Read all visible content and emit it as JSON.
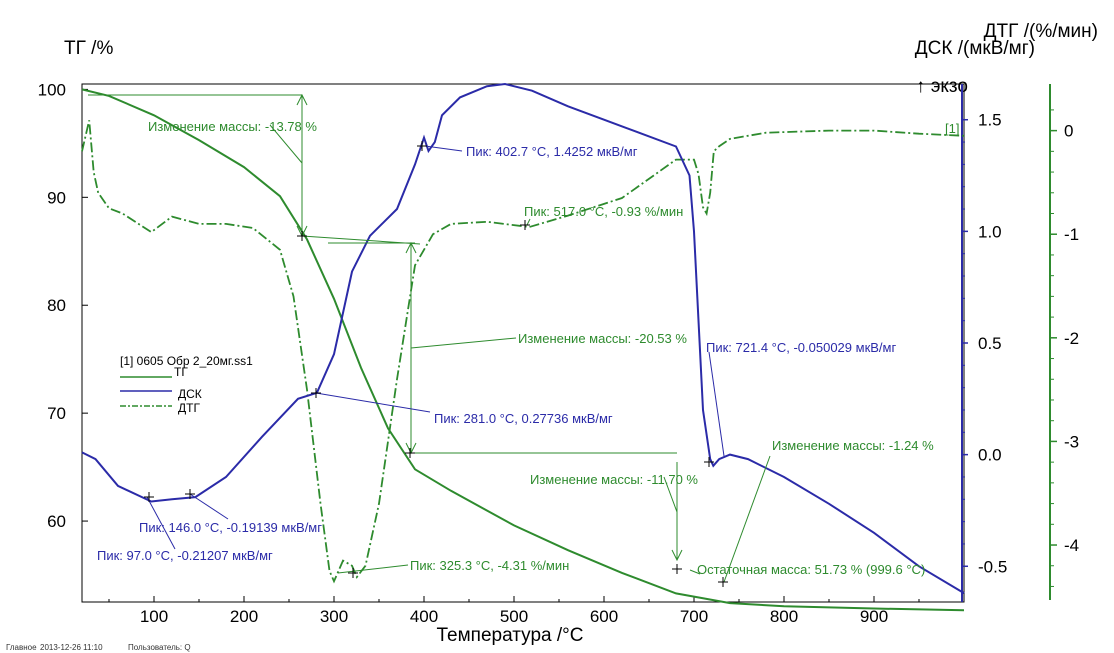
{
  "chart_data": {
    "type": "line",
    "xlabel": "Температура /°C",
    "x_ticks": [
      100,
      200,
      300,
      400,
      500,
      600,
      700,
      800,
      900
    ],
    "xlim": [
      20,
      1000
    ],
    "axes": {
      "tg": {
        "label": "ТГ /%",
        "ylim": [
          52.5,
          100.5
        ],
        "ticks": [
          60,
          70,
          80,
          90,
          100
        ]
      },
      "dsc": {
        "label": "ДСК /(мкВ/мг)",
        "sublabel": "↑ экзо",
        "ylim": [
          -0.66,
          1.66
        ],
        "ticks": [
          -0.5,
          0.0,
          0.5,
          1.0,
          1.5
        ],
        "tick_labels": [
          "-0.5",
          "0.0",
          "0.5",
          "1.0",
          "1.5"
        ]
      },
      "dtg": {
        "label": "ДТГ /(%/мин)",
        "ylim": [
          -4.55,
          0.45
        ],
        "ticks": [
          -4,
          -3,
          -2,
          -1,
          0
        ]
      }
    },
    "series": [
      {
        "name": "ТГ",
        "axis": "tg",
        "color": "#2e8b2e",
        "style": "solid",
        "x": [
          20,
          50,
          100,
          150,
          200,
          240,
          270,
          300,
          330,
          360,
          390,
          430,
          500,
          560,
          620,
          680,
          700,
          740,
          800,
          900,
          1000
        ],
        "y": [
          100,
          99.4,
          97.6,
          95.3,
          92.8,
          90.1,
          86.1,
          80.6,
          74.2,
          68.6,
          64.8,
          62.8,
          59.6,
          57.3,
          55.2,
          53.3,
          53.0,
          52.4,
          52.1,
          51.9,
          51.73
        ]
      },
      {
        "name": "ДСК",
        "axis": "dsc",
        "color": "#2b2ba8",
        "style": "solid",
        "x": [
          20,
          35,
          60,
          97,
          120,
          146,
          180,
          220,
          260,
          281,
          300,
          320,
          340,
          370,
          390,
          400,
          405,
          412,
          420,
          440,
          470,
          490,
          520,
          560,
          600,
          640,
          680,
          695,
          700,
          705,
          710,
          718,
          721.4,
          728,
          740,
          760,
          800,
          850,
          900,
          950,
          1000
        ],
        "y": [
          0.01,
          -0.02,
          -0.14,
          -0.21,
          -0.2,
          -0.19,
          -0.1,
          0.08,
          0.25,
          0.277,
          0.45,
          0.82,
          0.98,
          1.1,
          1.3,
          1.42,
          1.36,
          1.4,
          1.52,
          1.6,
          1.65,
          1.66,
          1.63,
          1.56,
          1.5,
          1.44,
          1.38,
          1.25,
          1.0,
          0.6,
          0.2,
          -0.02,
          -0.05,
          -0.02,
          0.0,
          -0.02,
          -0.1,
          -0.22,
          -0.35,
          -0.5,
          -0.62
        ]
      },
      {
        "name": "ДТГ",
        "axis": "dtg",
        "color": "#2e8b2e",
        "style": "dashdot",
        "x": [
          20,
          28,
          33,
          38,
          50,
          65,
          97,
          120,
          150,
          180,
          210,
          240,
          255,
          270,
          285,
          295,
          300,
          310,
          320,
          325.3,
          335,
          350,
          370,
          390,
          410,
          430,
          470,
          517,
          560,
          620,
          680,
          700,
          705,
          710,
          714,
          718,
          722,
          728,
          740,
          780,
          850,
          900,
          950,
          1000
        ],
        "y": [
          -0.2,
          0.1,
          -0.4,
          -0.6,
          -0.75,
          -0.8,
          -0.98,
          -0.83,
          -0.9,
          -0.9,
          -0.94,
          -1.15,
          -1.6,
          -2.5,
          -3.6,
          -4.25,
          -4.35,
          -4.15,
          -4.2,
          -4.31,
          -4.2,
          -3.6,
          -2.4,
          -1.3,
          -1.0,
          -0.9,
          -0.88,
          -0.93,
          -0.82,
          -0.65,
          -0.28,
          -0.28,
          -0.42,
          -0.74,
          -0.8,
          -0.6,
          -0.2,
          -0.15,
          -0.08,
          -0.02,
          0.0,
          0.0,
          -0.03,
          -0.05
        ]
      }
    ],
    "legend": {
      "title": "[1] 0605 Обр 2_20мг.ss1",
      "entries": [
        "ТГ",
        "ДСК",
        "ДТГ"
      ],
      "placement": "left-middle"
    },
    "annotations": {
      "mass_changes": [
        "Изменение массы: -13.78 %",
        "Изменение массы: -20.53 %",
        "Изменение массы: -11.70 %",
        "Изменение массы: -1.24 %"
      ],
      "residual": "Остаточная масса: 51.73 % (999.6 °C)",
      "dsc_peaks": [
        "Пик: 402.7 °C, 1.4252 мкВ/мг",
        "Пик: 281.0 °C, 0.27736 мкВ/мг",
        "Пик: 146.0 °C, -0.19139 мкВ/мг",
        "Пик: 97.0 °C, -0.21207 мкВ/мг",
        "Пик: 721.4 °C, -0.050029 мкВ/мг"
      ],
      "dtg_peaks": [
        "Пик: 517.0 °C, -0.93 %/мин",
        "Пик: 325.3 °C, -4.31 %/мин"
      ],
      "curve_tag": "[1]"
    },
    "colors": {
      "green": "#2e8b2e",
      "blue": "#2b2ba8"
    }
  },
  "footer": {
    "left": "Главное",
    "date": "2013-12-26 11:10",
    "user": "Пользователь: Q"
  }
}
